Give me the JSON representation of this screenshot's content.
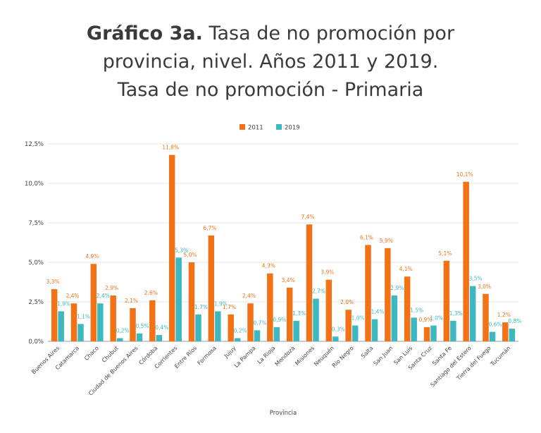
{
  "title": {
    "bold": "Gráfico 3a.",
    "line1_rest": " Tasa de no promoción por",
    "line2": "provincia, nivel. Años 2011 y 2019.",
    "line3": "Tasa de no promoción - Primaria"
  },
  "chart_data": {
    "type": "bar",
    "title": "Tasa de no promoción - Primaria",
    "xlabel": "Provincia",
    "ylabel": "",
    "ylim": [
      0,
      12.5
    ],
    "yticks": [
      "0,0%",
      "2,5%",
      "5,0%",
      "7,5%",
      "10,0%",
      "12,5%"
    ],
    "grid": true,
    "legend": "top",
    "categories": [
      "Buenos Aires",
      "Catamarca",
      "Chaco",
      "Chubut",
      "Ciudad de Buenos Aires",
      "Córdoba",
      "Corrientes",
      "Entre Ríos",
      "Formosa",
      "Jujuy",
      "La Pampa",
      "La Rioja",
      "Mendoza",
      "Misiones",
      "Neuquén",
      "Río Negro",
      "Salta",
      "San Juan",
      "San Luis",
      "Santa Cruz",
      "Santa Fe",
      "Santiago del Estero",
      "Tierra del Fuego",
      "Tucumán"
    ],
    "series": [
      {
        "name": "2011",
        "color": "#f47216",
        "values": [
          3.3,
          2.4,
          4.9,
          2.9,
          2.1,
          2.6,
          11.8,
          5.0,
          6.7,
          1.7,
          2.4,
          4.3,
          3.4,
          7.4,
          3.9,
          2.0,
          6.1,
          5.9,
          4.1,
          0.9,
          5.1,
          10.1,
          3.0,
          1.2
        ],
        "labels": [
          "3,3%",
          "2,4%",
          "4,9%",
          "2,9%",
          "2,1%",
          "2,6%",
          "11,8%",
          "5,0%",
          "6,7%",
          "1,7%",
          "2,4%",
          "4,3%",
          "3,4%",
          "7,4%",
          "3,9%",
          "2,0%",
          "6,1%",
          "5,9%",
          "4,1%",
          "0,9%",
          "5,1%",
          "10,1%",
          "3,0%",
          "1,2%"
        ]
      },
      {
        "name": "2019",
        "color": "#3db8c0",
        "values": [
          1.9,
          1.1,
          2.4,
          0.2,
          0.5,
          0.4,
          5.3,
          1.7,
          1.9,
          0.2,
          0.7,
          0.9,
          1.3,
          2.7,
          0.3,
          1.0,
          1.4,
          2.9,
          1.5,
          1.0,
          1.3,
          3.5,
          0.6,
          0.8
        ],
        "labels": [
          "1,9%",
          "1,1%",
          "2,4%",
          "0,2%",
          "0,5%",
          "0,4%",
          "5,3%",
          "1,7%",
          "1,9%",
          "0,2%",
          "0,7%",
          "0,9%",
          "1,3%",
          "2,7%",
          "0,3%",
          "1,0%",
          "1,4%",
          "2,9%",
          "1,5%",
          "1,0%",
          "1,3%",
          "3,5%",
          "0,6%",
          "0,8%"
        ]
      }
    ]
  }
}
